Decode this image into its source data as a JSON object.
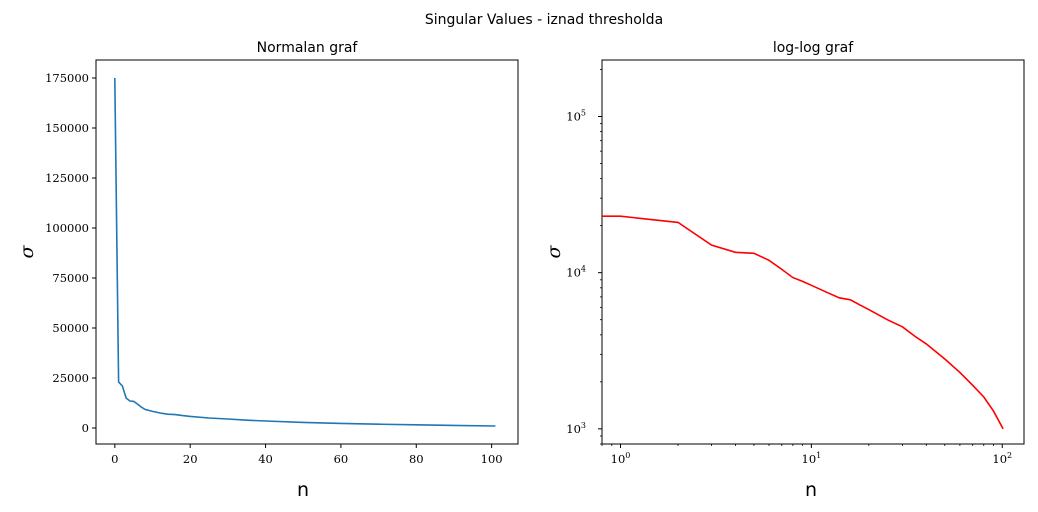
{
  "figure": {
    "suptitle": "Singular Values - iznad thresholda"
  },
  "chart_data": [
    {
      "type": "line",
      "title": "Normalan graf",
      "xlabel": "n",
      "ylabel": "σ",
      "xlim": [
        -5,
        107
      ],
      "ylim": [
        -8000,
        184000
      ],
      "x_ticks": [
        0,
        20,
        40,
        60,
        80,
        100
      ],
      "y_ticks": [
        0,
        25000,
        50000,
        75000,
        100000,
        125000,
        150000,
        175000
      ],
      "grid": false,
      "series": [
        {
          "color": "#1f77b4",
          "x": [
            0,
            1,
            2,
            3,
            4,
            5,
            6,
            7,
            8,
            9,
            10,
            12,
            14,
            16,
            18,
            20,
            25,
            30,
            35,
            40,
            50,
            60,
            70,
            80,
            90,
            101
          ],
          "y": [
            175000,
            23000,
            21000,
            15000,
            13500,
            13300,
            12000,
            10500,
            9300,
            8800,
            8300,
            7500,
            6900,
            6700,
            6200,
            5800,
            5000,
            4500,
            3900,
            3500,
            2800,
            2300,
            1900,
            1600,
            1300,
            1000
          ]
        }
      ]
    },
    {
      "type": "line",
      "title": "log-log graf",
      "xlabel": "n",
      "ylabel": "σ",
      "xscale": "log",
      "yscale": "log",
      "xlim": [
        0.8,
        130
      ],
      "ylim": [
        800,
        230000
      ],
      "x_ticks": [
        1,
        10,
        100
      ],
      "x_tick_labels": [
        "10",
        "10",
        "10"
      ],
      "x_tick_exponents": [
        "0",
        "1",
        "2"
      ],
      "y_ticks": [
        1000,
        10000,
        100000
      ],
      "y_tick_labels": [
        "10",
        "10",
        "10"
      ],
      "y_tick_exponents": [
        "3",
        "4",
        "5"
      ],
      "grid": false,
      "series": [
        {
          "color": "#ff0000",
          "x": [
            0.8,
            1,
            2,
            3,
            4,
            5,
            6,
            7,
            8,
            9,
            10,
            12,
            14,
            16,
            18,
            20,
            25,
            30,
            35,
            40,
            50,
            60,
            70,
            80,
            90,
            101
          ],
          "y": [
            23000,
            23000,
            21000,
            15000,
            13500,
            13300,
            12000,
            10500,
            9300,
            8800,
            8300,
            7500,
            6900,
            6700,
            6200,
            5800,
            5000,
            4500,
            3900,
            3500,
            2800,
            2300,
            1900,
            1600,
            1300,
            1000
          ]
        }
      ]
    }
  ]
}
